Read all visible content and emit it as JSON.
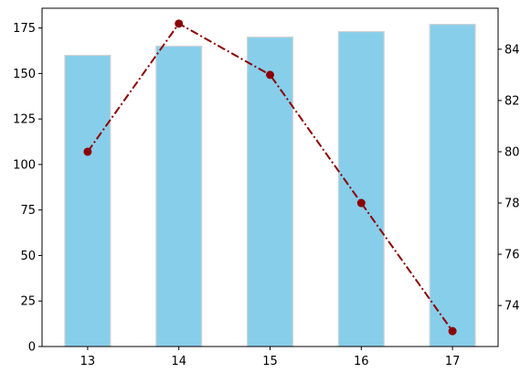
{
  "chart_data": {
    "type": "bar",
    "categories": [
      "13",
      "14",
      "15",
      "16",
      "17"
    ],
    "series": [
      {
        "type": "bar",
        "axis": "left",
        "values": [
          160,
          165,
          170,
          173,
          177
        ]
      },
      {
        "type": "line",
        "axis": "right",
        "values": [
          80,
          85,
          83,
          78,
          73
        ]
      }
    ],
    "title": "",
    "xlabel": "",
    "ylabel": "",
    "ylim": [
      0,
      185.85
    ],
    "y_ticks": [
      "0",
      "25",
      "50",
      "75",
      "100",
      "125",
      "150",
      "175"
    ],
    "y2lim": [
      72.4,
      85.6
    ],
    "y2_ticks": [
      "74",
      "76",
      "78",
      "80",
      "82",
      "84"
    ],
    "grid": false,
    "legend": "none",
    "colors": {
      "bar_fill": "#87ceeb",
      "bar_edge": "#d3d3d3",
      "line": "#8b0000",
      "marker": "#8b0000",
      "axis": "#000000"
    }
  }
}
